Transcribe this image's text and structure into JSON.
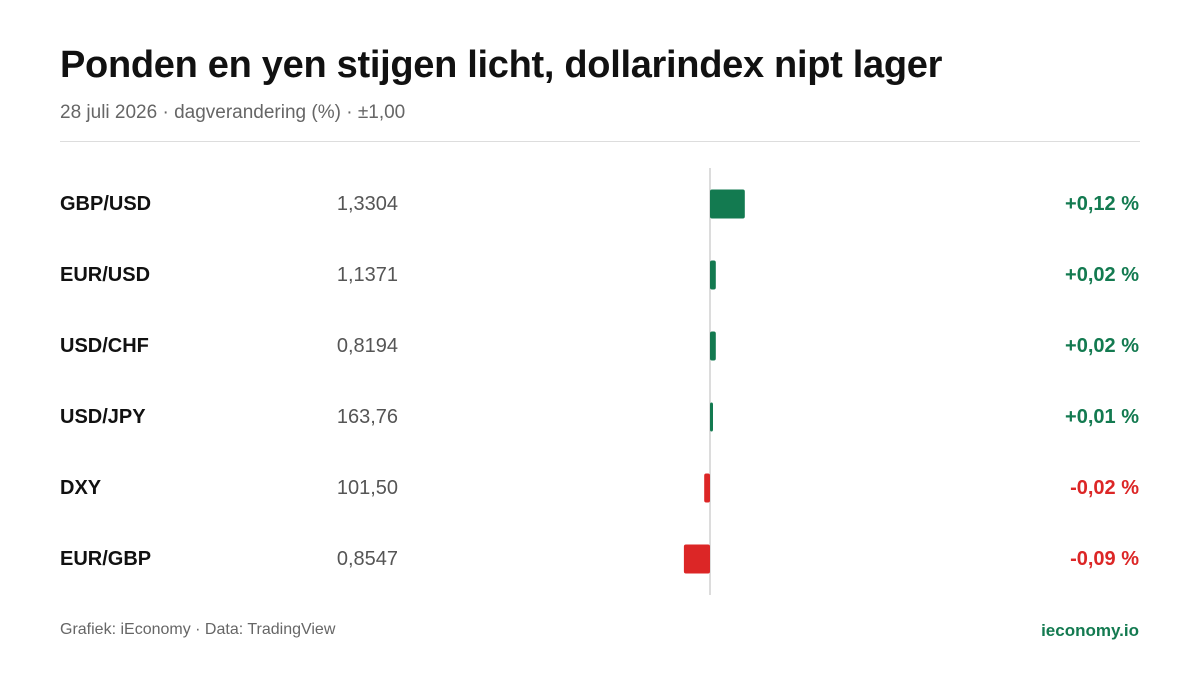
{
  "header": {
    "title": "Ponden en yen stijgen licht, dollarindex nipt lager",
    "subtitle": "28 juli 2026 · dagverandering (%) · ±1,00"
  },
  "footer": {
    "credit": "Grafiek: iEconomy · Data: TradingView",
    "brand": "ieconomy.io"
  },
  "colors": {
    "positive": "#137a50",
    "negative": "#dc2626",
    "axis": "#d0d0d0"
  },
  "chart_data": {
    "type": "bar",
    "orientation": "horizontal",
    "categories": [
      "GBP/USD",
      "EUR/USD",
      "USD/CHF",
      "USD/JPY",
      "DXY",
      "EUR/GBP"
    ],
    "prices": [
      "1,3304",
      "1,1371",
      "0,8194",
      "163,76",
      "101,50",
      "0,8547"
    ],
    "values": [
      0.12,
      0.02,
      0.02,
      0.01,
      -0.02,
      -0.09
    ],
    "value_labels": [
      "+0,12 %",
      "+0,02 %",
      "+0,02 %",
      "+0,01 %",
      "-0,02 %",
      "-0,09 %"
    ],
    "xlim": [
      -1,
      1
    ],
    "grid": false,
    "legend": "none"
  }
}
